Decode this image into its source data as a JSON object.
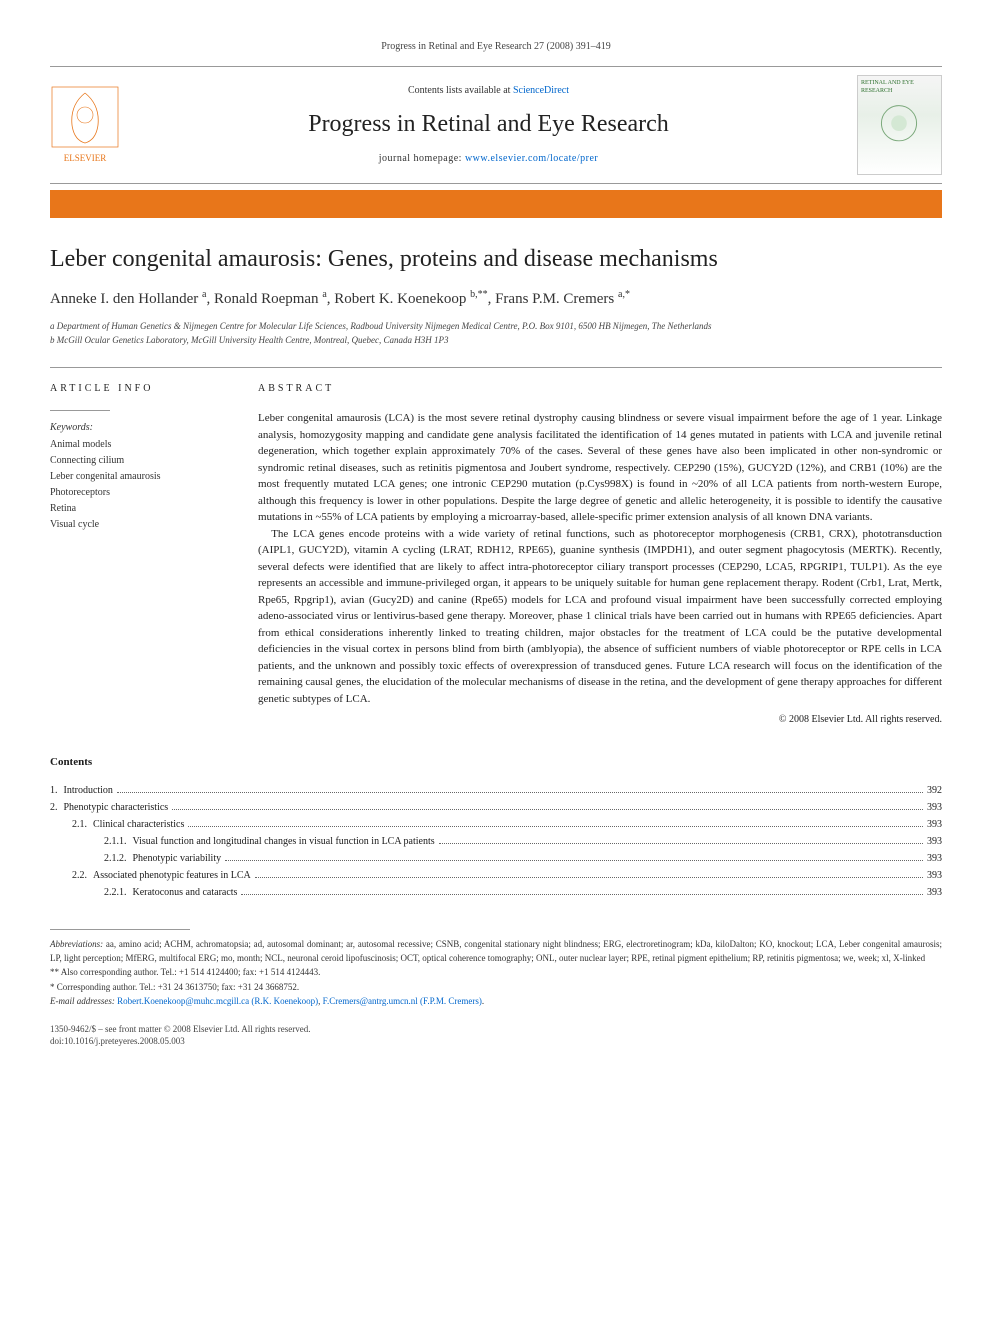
{
  "running_head": "Progress in Retinal and Eye Research 27 (2008) 391–419",
  "header": {
    "contents_prefix": "Contents lists available at ",
    "contents_link": "ScienceDirect",
    "journal_name": "Progress in Retinal and Eye Research",
    "homepage_prefix": "journal homepage: ",
    "homepage_link": "www.elsevier.com/locate/prer",
    "publisher_logo_label": "ELSEVIER",
    "cover_label": "RETINAL AND EYE RESEARCH"
  },
  "colors": {
    "brand_orange": "#e8761a",
    "link_blue": "#0066cc",
    "rule_gray": "#999999",
    "text": "#1a1a1a"
  },
  "article": {
    "title": "Leber congenital amaurosis: Genes, proteins and disease mechanisms",
    "authors_html": "Anneke I. den Hollander <sup>a</sup>, Ronald Roepman <sup>a</sup>, Robert K. Koenekoop <sup>b,**</sup>, Frans P.M. Cremers <sup>a,*</sup>",
    "affiliations": [
      "a Department of Human Genetics & Nijmegen Centre for Molecular Life Sciences, Radboud University Nijmegen Medical Centre, P.O. Box 9101, 6500 HB Nijmegen, The Netherlands",
      "b McGill Ocular Genetics Laboratory, McGill University Health Centre, Montreal, Quebec, Canada H3H 1P3"
    ]
  },
  "left_col": {
    "heading": "ARTICLE INFO",
    "keywords_label": "Keywords:",
    "keywords": [
      "Animal models",
      "Connecting cilium",
      "Leber congenital amaurosis",
      "Photoreceptors",
      "Retina",
      "Visual cycle"
    ]
  },
  "abstract": {
    "heading": "ABSTRACT",
    "paragraphs": [
      "Leber congenital amaurosis (LCA) is the most severe retinal dystrophy causing blindness or severe visual impairment before the age of 1 year. Linkage analysis, homozygosity mapping and candidate gene analysis facilitated the identification of 14 genes mutated in patients with LCA and juvenile retinal degeneration, which together explain approximately 70% of the cases. Several of these genes have also been implicated in other non-syndromic or syndromic retinal diseases, such as retinitis pigmentosa and Joubert syndrome, respectively. CEP290 (15%), GUCY2D (12%), and CRB1 (10%) are the most frequently mutated LCA genes; one intronic CEP290 mutation (p.Cys998X) is found in ~20% of all LCA patients from north-western Europe, although this frequency is lower in other populations. Despite the large degree of genetic and allelic heterogeneity, it is possible to identify the causative mutations in ~55% of LCA patients by employing a microarray-based, allele-specific primer extension analysis of all known DNA variants.",
      "The LCA genes encode proteins with a wide variety of retinal functions, such as photoreceptor morphogenesis (CRB1, CRX), phototransduction (AIPL1, GUCY2D), vitamin A cycling (LRAT, RDH12, RPE65), guanine synthesis (IMPDH1), and outer segment phagocytosis (MERTK). Recently, several defects were identified that are likely to affect intra-photoreceptor ciliary transport processes (CEP290, LCA5, RPGRIP1, TULP1). As the eye represents an accessible and immune-privileged organ, it appears to be uniquely suitable for human gene replacement therapy. Rodent (Crb1, Lrat, Mertk, Rpe65, Rpgrip1), avian (Gucy2D) and canine (Rpe65) models for LCA and profound visual impairment have been successfully corrected employing adeno-associated virus or lentivirus-based gene therapy. Moreover, phase 1 clinical trials have been carried out in humans with RPE65 deficiencies. Apart from ethical considerations inherently linked to treating children, major obstacles for the treatment of LCA could be the putative developmental deficiencies in the visual cortex in persons blind from birth (amblyopia), the absence of sufficient numbers of viable photoreceptor or RPE cells in LCA patients, and the unknown and possibly toxic effects of overexpression of transduced genes. Future LCA research will focus on the identification of the remaining causal genes, the elucidation of the molecular mechanisms of disease in the retina, and the development of gene therapy approaches for different genetic subtypes of LCA."
    ],
    "copyright": "© 2008 Elsevier Ltd. All rights reserved."
  },
  "contents": {
    "heading": "Contents",
    "items": [
      {
        "level": 0,
        "num": "1.",
        "title": "Introduction",
        "page": "392"
      },
      {
        "level": 0,
        "num": "2.",
        "title": "Phenotypic characteristics",
        "page": "393"
      },
      {
        "level": 1,
        "num": "2.1.",
        "title": "Clinical characteristics",
        "page": "393"
      },
      {
        "level": 2,
        "num": "2.1.1.",
        "title": "Visual function and longitudinal changes in visual function in LCA patients",
        "page": "393"
      },
      {
        "level": 2,
        "num": "2.1.2.",
        "title": "Phenotypic variability",
        "page": "393"
      },
      {
        "level": 1,
        "num": "2.2.",
        "title": "Associated phenotypic features in LCA",
        "page": "393"
      },
      {
        "level": 2,
        "num": "2.2.1.",
        "title": "Keratoconus and cataracts",
        "page": "393"
      }
    ]
  },
  "footnotes": {
    "abbreviations_label": "Abbreviations:",
    "abbreviations": " aa, amino acid; ACHM, achromatopsia; ad, autosomal dominant; ar, autosomal recessive; CSNB, congenital stationary night blindness; ERG, electroretinogram; kDa, kiloDalton; KO, knockout; LCA, Leber congenital amaurosis; LP, light perception; MfERG, multifocal ERG; mo, month; NCL, neuronal ceroid lipofuscinosis; OCT, optical coherence tomography; ONL, outer nuclear layer; RPE, retinal pigment epithelium; RP, retinitis pigmentosa; we, week; xl, X-linked",
    "corr1": "** Also corresponding author. Tel.: +1 514 4124400; fax: +1 514 4124443.",
    "corr2": "* Corresponding author. Tel.: +31 24 3613750; fax: +31 24 3668752.",
    "email_label": "E-mail addresses: ",
    "email1": "Robert.Koenekoop@muhc.mcgill.ca (R.K. Koenekoop)",
    "email_sep": ", ",
    "email2": "F.Cremers@antrg.umcn.nl (F.P.M. Cremers)",
    "email_end": "."
  },
  "bottom": {
    "line1": "1350-9462/$ – see front matter © 2008 Elsevier Ltd. All rights reserved.",
    "line2": "doi:10.1016/j.preteyeres.2008.05.003"
  }
}
